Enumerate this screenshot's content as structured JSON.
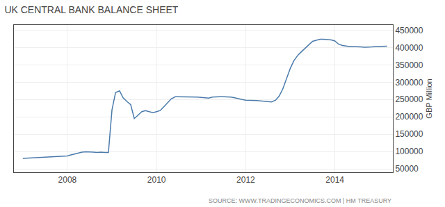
{
  "chart_data": {
    "type": "line",
    "title": "UK CENTRAL BANK BALANCE SHEET",
    "ylabel": "GBP Million",
    "annotations": [
      "SOURCE: WWW.TRADINGECONOMICS.COM | HM TREASURY"
    ],
    "color": "#4a7aab",
    "grid": true,
    "x": [
      2007.0,
      2007.17,
      2007.33,
      2007.5,
      2007.67,
      2007.83,
      2008.0,
      2008.08,
      2008.17,
      2008.25,
      2008.33,
      2008.42,
      2008.5,
      2008.58,
      2008.67,
      2008.75,
      2008.83,
      2008.92,
      2009.0,
      2009.08,
      2009.17,
      2009.25,
      2009.33,
      2009.42,
      2009.5,
      2009.58,
      2009.67,
      2009.75,
      2009.83,
      2009.92,
      2010.0,
      2010.08,
      2010.17,
      2010.25,
      2010.33,
      2010.42,
      2010.5,
      2010.58,
      2010.67,
      2010.75,
      2010.83,
      2010.92,
      2011.0,
      2011.08,
      2011.17,
      2011.25,
      2011.33,
      2011.42,
      2011.5,
      2011.58,
      2011.67,
      2011.75,
      2011.83,
      2011.92,
      2012.0,
      2012.08,
      2012.17,
      2012.25,
      2012.33,
      2012.42,
      2012.5,
      2012.58,
      2012.67,
      2012.75,
      2012.83,
      2012.92,
      2013.0,
      2013.08,
      2013.17,
      2013.25,
      2013.33,
      2013.42,
      2013.5,
      2013.58,
      2013.67,
      2013.75,
      2013.83,
      2013.92,
      2014.0,
      2014.08,
      2014.17,
      2014.25,
      2014.33,
      2014.42,
      2014.5,
      2014.58,
      2014.67,
      2014.75,
      2014.83,
      2014.92,
      2015.0,
      2015.08,
      2015.17
    ],
    "values": [
      80000,
      81000,
      82000,
      83000,
      84000,
      85000,
      87000,
      90000,
      93000,
      96000,
      98000,
      99000,
      99000,
      98000,
      97000,
      98000,
      97000,
      97000,
      220000,
      270000,
      275000,
      255000,
      245000,
      235000,
      195000,
      205000,
      215000,
      218000,
      215000,
      212000,
      215000,
      218000,
      230000,
      240000,
      252000,
      258000,
      258000,
      257000,
      257000,
      258000,
      258000,
      257000,
      256000,
      255000,
      254000,
      257000,
      258000,
      258000,
      258000,
      258000,
      257000,
      255000,
      252000,
      250000,
      248000,
      248000,
      247000,
      247000,
      246000,
      245000,
      243000,
      243000,
      248000,
      260000,
      280000,
      310000,
      340000,
      362000,
      378000,
      388000,
      398000,
      410000,
      418000,
      421000,
      424000,
      424000,
      423000,
      422000,
      419000,
      410000,
      406000,
      404000,
      403000,
      403000,
      403000,
      402000,
      401000,
      401000,
      402000,
      403000,
      403000,
      403000,
      404000
    ],
    "xlim": [
      2006.8,
      2015.3
    ],
    "xticks": [
      2008,
      2010,
      2012,
      2014
    ],
    "ylim": [
      40000,
      465000
    ],
    "yticks": [
      50000,
      100000,
      150000,
      200000,
      250000,
      300000,
      350000,
      400000,
      450000
    ]
  }
}
